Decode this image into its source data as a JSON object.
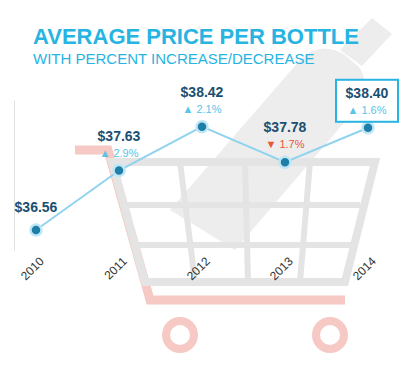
{
  "chart_data": {
    "type": "line",
    "title": "AVERAGE PRICE PER BOTTLE",
    "subtitle": "WITH PERCENT INCREASE/DECREASE",
    "categories": [
      "2010",
      "2011",
      "2012",
      "2013",
      "2014"
    ],
    "values": [
      36.56,
      37.63,
      38.42,
      37.78,
      38.4
    ],
    "value_labels": [
      "$36.56",
      "$37.63",
      "$38.42",
      "$37.78",
      "$38.40"
    ],
    "percent_change": [
      null,
      2.9,
      2.1,
      -1.7,
      1.6
    ],
    "percent_change_labels": [
      null,
      "▲ 2.9%",
      "▲ 2.1%",
      "▼ 1.7%",
      "▲ 1.6%"
    ],
    "color": "#8fd3ee",
    "marker": "circle",
    "data_labels": true,
    "tick_labels": "x",
    "grid": false,
    "ylim": [
      36.2,
      38.9
    ],
    "yticks": []
  }
}
